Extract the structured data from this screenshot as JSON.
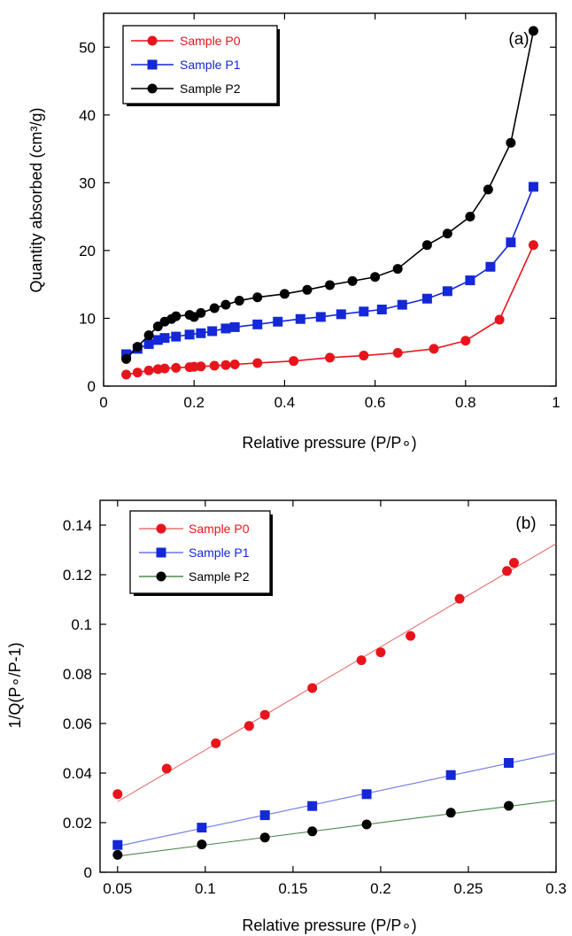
{
  "chart_data": [
    {
      "type": "line",
      "panel_label": "(a)",
      "xlabel": "Relative pressure (P/P∘)",
      "ylabel": "Quantity absorbed (cm³/g)",
      "xlim": [
        0,
        1
      ],
      "ylim": [
        0,
        55
      ],
      "xticks": [
        "0",
        "0.2",
        "0.4",
        "0.6",
        "0.8",
        "1"
      ],
      "xtick_values": [
        0,
        0.2,
        0.4,
        0.6,
        0.8,
        1
      ],
      "yticks": [
        "0",
        "10",
        "20",
        "30",
        "40",
        "50"
      ],
      "ytick_values": [
        0,
        10,
        20,
        30,
        40,
        50
      ],
      "legend_position": "top-left",
      "series": [
        {
          "name": "Sample P0",
          "color": "#e8141c",
          "marker": "circle",
          "x": [
            0.05,
            0.075,
            0.1,
            0.12,
            0.135,
            0.16,
            0.19,
            0.2,
            0.215,
            0.245,
            0.27,
            0.29,
            0.34,
            0.42,
            0.5,
            0.575,
            0.65,
            0.73,
            0.8,
            0.875,
            0.95
          ],
          "y": [
            1.7,
            2.0,
            2.3,
            2.5,
            2.6,
            2.7,
            2.8,
            2.85,
            2.9,
            3.0,
            3.1,
            3.2,
            3.4,
            3.7,
            4.2,
            4.5,
            4.9,
            5.5,
            6.7,
            9.8,
            20.8
          ]
        },
        {
          "name": "Sample P1",
          "color": "#1428d8",
          "marker": "square",
          "x": [
            0.05,
            0.075,
            0.1,
            0.12,
            0.135,
            0.16,
            0.19,
            0.215,
            0.24,
            0.27,
            0.29,
            0.34,
            0.385,
            0.435,
            0.48,
            0.525,
            0.575,
            0.615,
            0.66,
            0.715,
            0.76,
            0.81,
            0.855,
            0.9,
            0.95
          ],
          "y": [
            4.7,
            5.5,
            6.2,
            6.8,
            7.1,
            7.3,
            7.6,
            7.8,
            8.1,
            8.5,
            8.7,
            9.1,
            9.5,
            9.9,
            10.2,
            10.6,
            11.0,
            11.3,
            12.0,
            12.9,
            14.0,
            15.6,
            17.6,
            21.2,
            29.4
          ]
        },
        {
          "name": "Sample P2",
          "color": "#000000",
          "marker": "circle",
          "x": [
            0.05,
            0.075,
            0.1,
            0.12,
            0.135,
            0.15,
            0.16,
            0.19,
            0.2,
            0.215,
            0.245,
            0.27,
            0.3,
            0.34,
            0.4,
            0.45,
            0.5,
            0.55,
            0.6,
            0.65,
            0.715,
            0.76,
            0.81,
            0.85,
            0.9,
            0.95
          ],
          "y": [
            4.0,
            5.8,
            7.5,
            8.8,
            9.5,
            9.9,
            10.3,
            10.5,
            10.2,
            10.8,
            11.5,
            12.0,
            12.6,
            13.1,
            13.6,
            14.2,
            14.9,
            15.5,
            16.1,
            17.3,
            20.8,
            22.5,
            25.0,
            29.0,
            35.9,
            52.4
          ]
        }
      ]
    },
    {
      "type": "scatter",
      "panel_label": "(b)",
      "xlabel": "Relative pressure (P/P∘)",
      "ylabel": "1/Q(P∘/P-1)",
      "xlim": [
        0.04,
        0.3
      ],
      "ylim": [
        0,
        0.15
      ],
      "xticks": [
        "0.05",
        "0.1",
        "0.15",
        "0.2",
        "0.25",
        "0.3"
      ],
      "xtick_values": [
        0.05,
        0.1,
        0.15,
        0.2,
        0.25,
        0.3
      ],
      "yticks": [
        "0",
        "0.02",
        "0.04",
        "0.06",
        "0.08",
        "0.1",
        "0.12",
        "0.14"
      ],
      "ytick_values": [
        0,
        0.02,
        0.04,
        0.06,
        0.08,
        0.1,
        0.12,
        0.14
      ],
      "legend_position": "top-left",
      "series": [
        {
          "name": "Sample P0",
          "color": "#e8141c",
          "marker": "circle",
          "x": [
            0.05,
            0.078,
            0.106,
            0.125,
            0.134,
            0.161,
            0.189,
            0.2,
            0.217,
            0.245,
            0.272,
            0.276
          ],
          "y": [
            0.0315,
            0.0418,
            0.052,
            0.059,
            0.0635,
            0.0743,
            0.0855,
            0.0887,
            0.0953,
            0.1103,
            0.1215,
            0.1248
          ],
          "fit_line": {
            "x": [
              0.05,
              0.3
            ],
            "y": [
              0.0285,
              0.1325
            ]
          },
          "line_color": "#e87070"
        },
        {
          "name": "Sample P1",
          "color": "#1428d8",
          "marker": "square",
          "x": [
            0.05,
            0.098,
            0.134,
            0.161,
            0.192,
            0.24,
            0.273
          ],
          "y": [
            0.011,
            0.018,
            0.023,
            0.0267,
            0.0315,
            0.0392,
            0.0441
          ],
          "fit_line": {
            "x": [
              0.05,
              0.3
            ],
            "y": [
              0.0105,
              0.048
            ]
          },
          "line_color": "#6a78e8"
        },
        {
          "name": "Sample P2",
          "color": "#000000",
          "marker": "circle",
          "x": [
            0.05,
            0.098,
            0.134,
            0.161,
            0.192,
            0.24,
            0.273
          ],
          "y": [
            0.007,
            0.0112,
            0.014,
            0.0165,
            0.0193,
            0.024,
            0.0268
          ],
          "fit_line": {
            "x": [
              0.05,
              0.3
            ],
            "y": [
              0.0065,
              0.029
            ]
          },
          "line_color": "#4a8a4a"
        }
      ]
    }
  ]
}
